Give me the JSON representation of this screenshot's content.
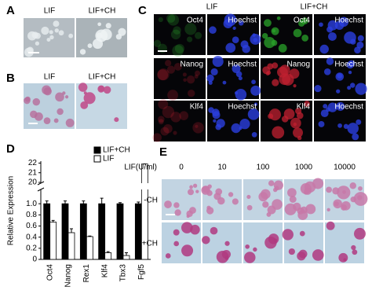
{
  "panels": {
    "a": {
      "label": "A",
      "cols": [
        "LIF",
        "LIF+CH"
      ]
    },
    "b": {
      "label": "B",
      "cols": [
        "LIF",
        "LIF+CH"
      ]
    },
    "c": {
      "label": "C",
      "cols": [
        "LIF",
        "LIF+CH"
      ],
      "rows": [
        [
          "Oct4",
          "Hoechst",
          "Oct4",
          "Hoechst"
        ],
        [
          "Nanog",
          "Hoechst",
          "Nanog",
          "Hoechst"
        ],
        [
          "Klf4",
          "Hoechst",
          "Klf4",
          "Hoechst"
        ]
      ]
    },
    "d": {
      "label": "D"
    },
    "e": {
      "label": "E",
      "header": "LIF(U/ml)",
      "cols": [
        "0",
        "10",
        "100",
        "1000",
        "10000"
      ],
      "rows": [
        "-CH",
        "+CH"
      ]
    }
  },
  "chart_data": {
    "type": "bar",
    "ylabel": "Relative Expression",
    "categories": [
      "Oct4",
      "Nanog",
      "Rex1",
      "Klf4",
      "Tbx3",
      "Fgf5"
    ],
    "series": [
      {
        "name": "LIF+CH",
        "color": "#000000",
        "values": [
          1,
          1,
          1,
          1,
          1,
          1
        ],
        "errors": [
          0.05,
          0.05,
          0.05,
          0.1,
          0.02,
          0.03
        ]
      },
      {
        "name": "LIF",
        "color": "#ffffff",
        "values": [
          0.67,
          0.48,
          0.41,
          0.12,
          0.07,
          21.9
        ],
        "errors": [
          0.03,
          0.07,
          0.01,
          0.02,
          0.05,
          0.01
        ]
      }
    ],
    "ylim": [
      0,
      22.2
    ],
    "axis_break": [
      1.2,
      20
    ],
    "yticks": [
      0,
      0.2,
      0.4,
      0.6,
      0.8,
      {
        "value": 1,
        "label": "1.0"
      },
      20,
      21,
      22
    ],
    "legend": "upper-right"
  }
}
